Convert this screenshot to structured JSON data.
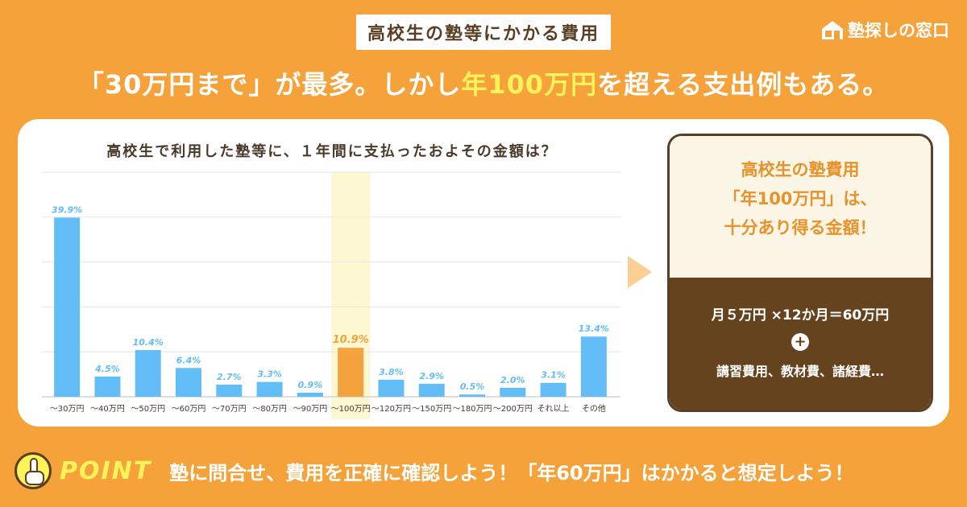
{
  "badge": "高校生の塾等にかかる費用",
  "logo": {
    "text": "塾探しの窓口",
    "icon": "house-icon"
  },
  "headline": {
    "part1": "「30万円まで」が最多。しかし",
    "highlight": "年100万円",
    "part2": "を超える支出例もある。"
  },
  "chart_data": {
    "type": "bar",
    "title": "高校生で利用した塾等に、１年間に支払ったおよその金額は？",
    "categories": [
      "～30万円",
      "～40万円",
      "～50万円",
      "～60万円",
      "～70万円",
      "～80万円",
      "～90万円",
      "～100万円",
      "～120万円",
      "～150万円",
      "～180万円",
      "～200万円",
      "それ以上",
      "その他"
    ],
    "values": [
      39.9,
      4.5,
      10.4,
      6.4,
      2.7,
      3.3,
      0.9,
      10.9,
      3.8,
      2.9,
      0.5,
      2.0,
      3.1,
      13.4
    ],
    "labels": [
      "39.9%",
      "4.5%",
      "10.4%",
      "6.4%",
      "2.7%",
      "3.3%",
      "0.9%",
      "10.9%",
      "3.8%",
      "2.9%",
      "0.5%",
      "2.0%",
      "3.1%",
      "13.4%"
    ],
    "highlight_index": 7,
    "ylim": [
      0,
      50
    ],
    "grid": true,
    "colors": {
      "bar": "#63bdf6",
      "highlight_bar": "#f4a23c",
      "highlight_band": "#fdf7d2",
      "label": "#63bdf6",
      "highlight_label": "#f4a23c"
    }
  },
  "card": {
    "line1": "高校生の塾費用",
    "line2": "「年100万円」は、",
    "line3": "十分あり得る金額！",
    "calc": "月５万円 ×12か月＝60万円",
    "plus": "+",
    "extra": "講習費用、教材費、諸経費…"
  },
  "point": {
    "label": "POINT",
    "icon": "pointing-hand-icon",
    "text": "塾に問合せ、費用を正確に確認しよう！「年60万円」はかかると想定しよう！"
  }
}
